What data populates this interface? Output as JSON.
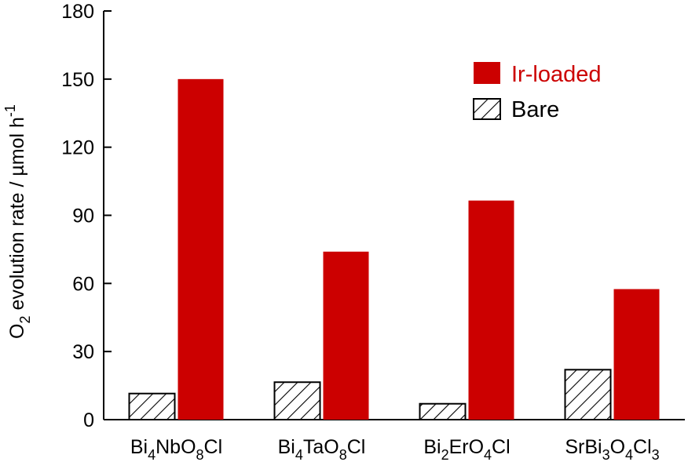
{
  "chart_data": {
    "type": "bar",
    "categories": [
      {
        "base": "Bi",
        "parts": [
          [
            "Bi",
            ""
          ],
          [
            "4",
            "sub"
          ],
          [
            "NbO",
            ""
          ],
          [
            "8",
            "sub"
          ],
          [
            "Cl",
            ""
          ]
        ],
        "text": "Bi4NbO8Cl"
      },
      {
        "base": "Bi",
        "parts": [
          [
            "Bi",
            ""
          ],
          [
            "4",
            "sub"
          ],
          [
            "TaO",
            ""
          ],
          [
            "8",
            "sub"
          ],
          [
            "Cl",
            ""
          ]
        ],
        "text": "Bi4TaO8Cl"
      },
      {
        "base": "Bi",
        "parts": [
          [
            "Bi",
            ""
          ],
          [
            "2",
            "sub"
          ],
          [
            "ErO",
            ""
          ],
          [
            "4",
            "sub"
          ],
          [
            "Cl",
            ""
          ]
        ],
        "text": "Bi2ErO4Cl"
      },
      {
        "base": "Sr",
        "parts": [
          [
            "SrBi",
            ""
          ],
          [
            "3",
            "sub"
          ],
          [
            "O",
            ""
          ],
          [
            "4",
            "sub"
          ],
          [
            "Cl",
            ""
          ],
          [
            "3",
            "sub"
          ]
        ],
        "text": "SrBi3O4Cl3"
      }
    ],
    "series": [
      {
        "name": "Bare",
        "values": [
          11.5,
          16.5,
          7,
          22
        ],
        "color": "#ffffff",
        "pattern": "hatch"
      },
      {
        "name": "Ir-loaded",
        "values": [
          150,
          74,
          96.5,
          57.5
        ],
        "color": "#cc0000",
        "pattern": "solid"
      }
    ],
    "ylim": [
      0,
      180
    ],
    "yticks": [
      0,
      30,
      60,
      90,
      120,
      150,
      180
    ],
    "ylabel": {
      "parts": [
        [
          "O",
          ""
        ],
        [
          "2",
          "sub"
        ],
        [
          " evolution rate / µmol h",
          ""
        ],
        [
          "-1",
          "sup"
        ]
      ],
      "text": "O2 evolution rate / µmol h-1"
    },
    "legend": {
      "placement": "top-right",
      "order": [
        "Ir-loaded",
        "Bare"
      ],
      "ir_text_color": "#cc0000",
      "bare_text_color": "#000000"
    },
    "grid": false
  }
}
